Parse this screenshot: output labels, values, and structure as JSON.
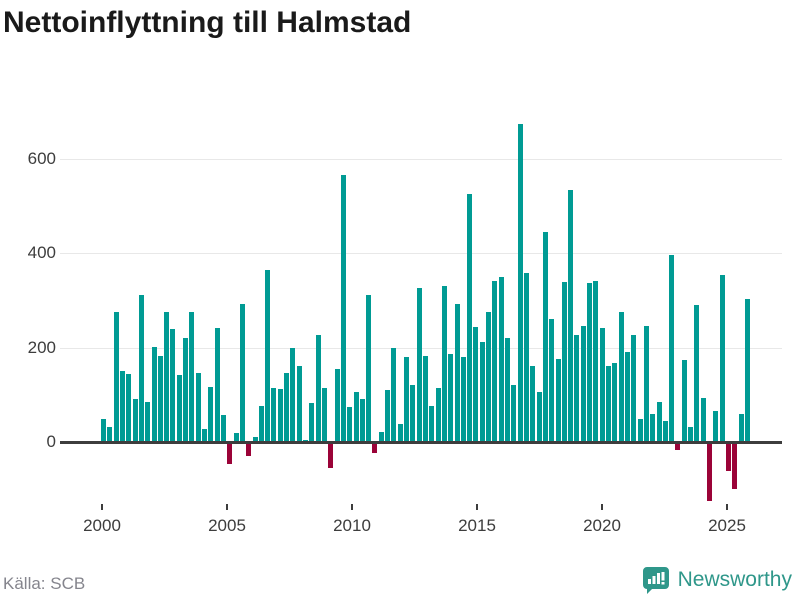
{
  "title": "Nettoinflyttning till Halmstad",
  "source": "Källa: SCB",
  "logo": {
    "text": "Newsworthy"
  },
  "colors": {
    "positive_bar": "#009b94",
    "negative_bar": "#9b0338",
    "gridline": "#e8e8e8",
    "zero_line": "#3d3d3d",
    "axis_text": "#3d3d3d",
    "title_text": "#1a1a1a",
    "source_text": "#85858d",
    "logo_teal": "#2f978a",
    "background": "#ffffff"
  },
  "chart_data": {
    "type": "bar",
    "title": "Nettoinflyttning till Halmstad",
    "xlabel": "",
    "ylabel": "",
    "x_unit": "quarter",
    "x_start": {
      "year": 2000,
      "quarter": 1
    },
    "x_end": {
      "year": 2025,
      "quarter": 3
    },
    "ylim": [
      -140,
      700
    ],
    "yticks": [
      0,
      200,
      400,
      600
    ],
    "xticks": [
      2000,
      2005,
      2010,
      2015,
      2020,
      2025
    ],
    "grid": "horizontal",
    "legend": "none",
    "series_by_year": [
      {
        "year": 2000,
        "q": [
          47,
          30,
          272,
          149
        ]
      },
      {
        "year": 2001,
        "q": [
          142,
          88,
          310,
          83
        ]
      },
      {
        "year": 2002,
        "q": [
          199,
          180,
          272,
          237
        ]
      },
      {
        "year": 2003,
        "q": [
          139,
          218,
          272,
          143
        ]
      },
      {
        "year": 2004,
        "q": [
          26,
          115,
          240,
          55
        ]
      },
      {
        "year": 2005,
        "q": [
          -43,
          16,
          291,
          -26
        ]
      },
      {
        "year": 2006,
        "q": [
          8,
          74,
          361,
          113
        ]
      },
      {
        "year": 2007,
        "q": [
          111,
          143,
          197,
          159
        ]
      },
      {
        "year": 2008,
        "q": [
          2,
          81,
          225,
          112
        ]
      },
      {
        "year": 2009,
        "q": [
          -50,
          152,
          562,
          71
        ]
      },
      {
        "year": 2010,
        "q": [
          103,
          88,
          308,
          -18
        ]
      },
      {
        "year": 2011,
        "q": [
          18,
          107,
          197,
          35
        ]
      },
      {
        "year": 2012,
        "q": [
          177,
          119,
          323,
          180
        ]
      },
      {
        "year": 2013,
        "q": [
          74,
          113,
          327,
          185
        ]
      },
      {
        "year": 2014,
        "q": [
          289,
          178,
          522,
          242
        ]
      },
      {
        "year": 2015,
        "q": [
          209,
          274,
          338,
          348
        ]
      },
      {
        "year": 2016,
        "q": [
          218,
          118,
          670,
          355
        ]
      },
      {
        "year": 2017,
        "q": [
          159,
          104,
          443,
          258
        ]
      },
      {
        "year": 2018,
        "q": [
          173,
          336,
          532,
          224
        ]
      },
      {
        "year": 2019,
        "q": [
          244,
          334,
          339,
          240
        ]
      },
      {
        "year": 2020,
        "q": [
          159,
          165,
          274,
          189
        ]
      },
      {
        "year": 2021,
        "q": [
          224,
          47,
          244,
          58
        ]
      },
      {
        "year": 2022,
        "q": [
          83,
          42,
          394,
          -12
        ]
      },
      {
        "year": 2023,
        "q": [
          171,
          30,
          288,
          91
        ]
      },
      {
        "year": 2024,
        "q": [
          -120,
          64,
          351,
          -58
        ]
      },
      {
        "year": 2025,
        "q": [
          -95,
          58,
          300
        ]
      }
    ]
  }
}
